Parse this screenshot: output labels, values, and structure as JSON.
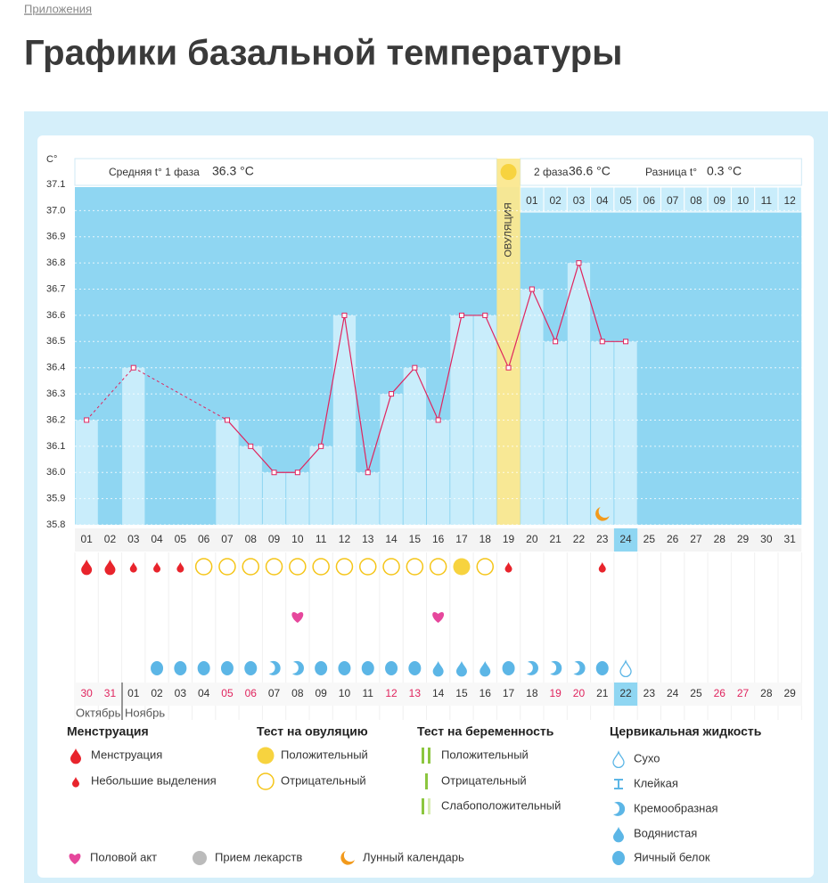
{
  "breadcrumb": "Приложения",
  "heading": "Графики базальной температуры",
  "chart_data": {
    "type": "bar",
    "y_label": "C°",
    "phase1_label": "Средняя t° 1 фаза",
    "phase1_value": "36.3 °C",
    "phase2_label": "2 фаза",
    "phase2_value": "36.6 °C",
    "difference_label": "Разница t°",
    "difference_value": "0.3 °C",
    "ovulation_label": "ОВУЛЯЦИЯ",
    "categories": [
      "01",
      "02",
      "03",
      "04",
      "05",
      "06",
      "07",
      "08",
      "09",
      "10",
      "11",
      "12",
      "13",
      "14",
      "15",
      "16",
      "17",
      "18",
      "19",
      "20",
      "21",
      "22",
      "23",
      "24",
      "25",
      "26",
      "27",
      "28",
      "29",
      "30",
      "31"
    ],
    "values": [
      36.2,
      null,
      36.4,
      null,
      null,
      null,
      36.2,
      36.1,
      36.0,
      36.0,
      36.1,
      36.6,
      36.0,
      36.3,
      36.4,
      36.2,
      36.6,
      36.6,
      36.4,
      36.7,
      36.5,
      36.8,
      36.5,
      36.5,
      null,
      null,
      null,
      null,
      null,
      null,
      null
    ],
    "days_after_ovulation": [
      "01",
      "02",
      "03",
      "04",
      "05",
      "06",
      "07",
      "08",
      "09",
      "10",
      "11",
      "12"
    ],
    "dates": [
      "30",
      "31",
      "01",
      "02",
      "03",
      "04",
      "05",
      "06",
      "07",
      "08",
      "09",
      "10",
      "11",
      "12",
      "13",
      "14",
      "15",
      "16",
      "17",
      "18",
      "19",
      "20",
      "21",
      "22",
      "23",
      "24",
      "25",
      "26",
      "27",
      "28",
      "29"
    ],
    "date_colors": [
      "#e0245e",
      "#e0245e",
      "#333",
      "#333",
      "#333",
      "#333",
      "#e0245e",
      "#e0245e",
      "#333",
      "#333",
      "#333",
      "#333",
      "#333",
      "#e0245e",
      "#e0245e",
      "#333",
      "#333",
      "#333",
      "#333",
      "#333",
      "#e0245e",
      "#e0245e",
      "#333",
      "#333",
      "#333",
      "#333",
      "#333",
      "#e0245e",
      "#e0245e",
      "#333",
      "#333"
    ],
    "months": [
      "Октябрь",
      "Ноябрь"
    ],
    "ylim": [
      35.8,
      37.1
    ],
    "yticks": [
      35.8,
      35.9,
      {
        "value": 36,
        "label": "36.0"
      },
      36.1,
      36.2,
      36.3,
      36.4,
      36.5,
      36.6,
      36.7,
      36.8,
      36.9,
      {
        "value": 37,
        "label": "37.0"
      },
      37.1
    ],
    "grid": true,
    "color": "#c9edfb",
    "line_color": "#e0245e",
    "background_color": "#8fd6f2"
  },
  "legend": {
    "groups": [
      {
        "title": "Менструация",
        "items": [
          "Менструация",
          "Небольшие выделения"
        ]
      },
      {
        "title": "Тест на овуляцию",
        "items": [
          "Положительный",
          "Отрицательный"
        ]
      },
      {
        "title": "Тест на беременность",
        "items": [
          "Положительный",
          "Отрицательный",
          "Слабоположительный"
        ]
      },
      {
        "title": "Цервикальная жидкость",
        "items": [
          "Сухо",
          "Клейкая",
          "Кремообразная",
          "Водянистая",
          "Яичный белок"
        ]
      }
    ],
    "extra": [
      "Половой акт",
      "Прием лекарств",
      "Лунный календарь"
    ]
  }
}
